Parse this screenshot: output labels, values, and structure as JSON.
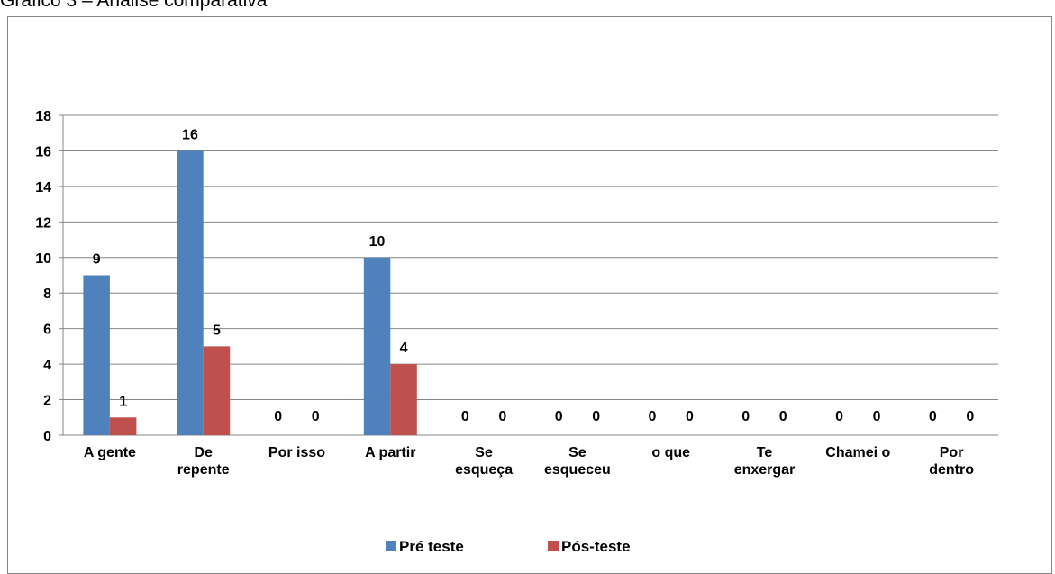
{
  "chart_data": {
    "type": "bar",
    "title": "Gráfico 3 – Análise comparativa",
    "categories": [
      "A gente",
      "De\nrepente",
      "Por isso",
      "A partir",
      "Se\nesqueça",
      "Se\nesqueceu",
      "o que",
      "Te\nenxergar",
      "Chamei o",
      "Por\ndentro"
    ],
    "series": [
      {
        "name": "Pré teste",
        "color": "#4f81bd",
        "values": [
          9,
          16,
          0,
          10,
          0,
          0,
          0,
          0,
          0,
          0
        ]
      },
      {
        "name": "Pós-teste",
        "color": "#c0504d",
        "values": [
          1,
          5,
          0,
          4,
          0,
          0,
          0,
          0,
          0,
          0
        ]
      }
    ],
    "ylim": [
      0,
      18
    ],
    "yticks": [
      0,
      2,
      4,
      6,
      8,
      10,
      12,
      14,
      16,
      18
    ],
    "grid": true,
    "legend": "bottom"
  }
}
